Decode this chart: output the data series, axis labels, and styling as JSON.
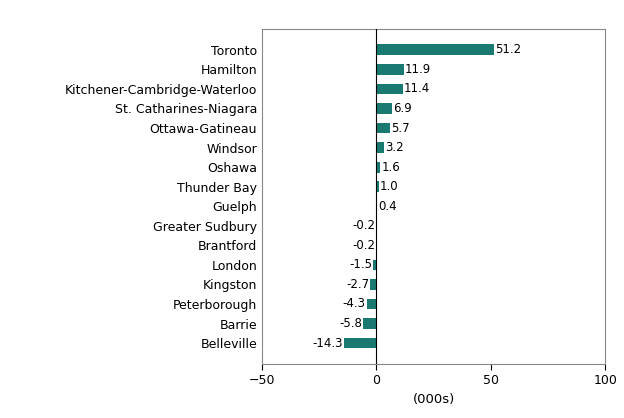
{
  "categories": [
    "Belleville",
    "Barrie",
    "Peterborough",
    "Kingston",
    "London",
    "Brantford",
    "Greater Sudbury",
    "Guelph",
    "Thunder Bay",
    "Oshawa",
    "Windsor",
    "Ottawa-Gatineau",
    "St. Catharines-Niagara",
    "Kitchener-Cambridge-Waterloo",
    "Hamilton",
    "Toronto"
  ],
  "values": [
    -14.3,
    -5.8,
    -4.3,
    -2.7,
    -1.5,
    -0.2,
    -0.2,
    0.4,
    1.0,
    1.6,
    3.2,
    5.7,
    6.9,
    11.4,
    11.9,
    51.2
  ],
  "bar_color": "#1a7a72",
  "xlabel": "(000s)",
  "xlim": [
    -50,
    100
  ],
  "xticks": [
    -50,
    0,
    50,
    100
  ],
  "background_color": "#ffffff",
  "label_fontsize": 9,
  "xlabel_fontsize": 9.5,
  "value_label_fontsize": 8.5,
  "bar_height": 0.55
}
